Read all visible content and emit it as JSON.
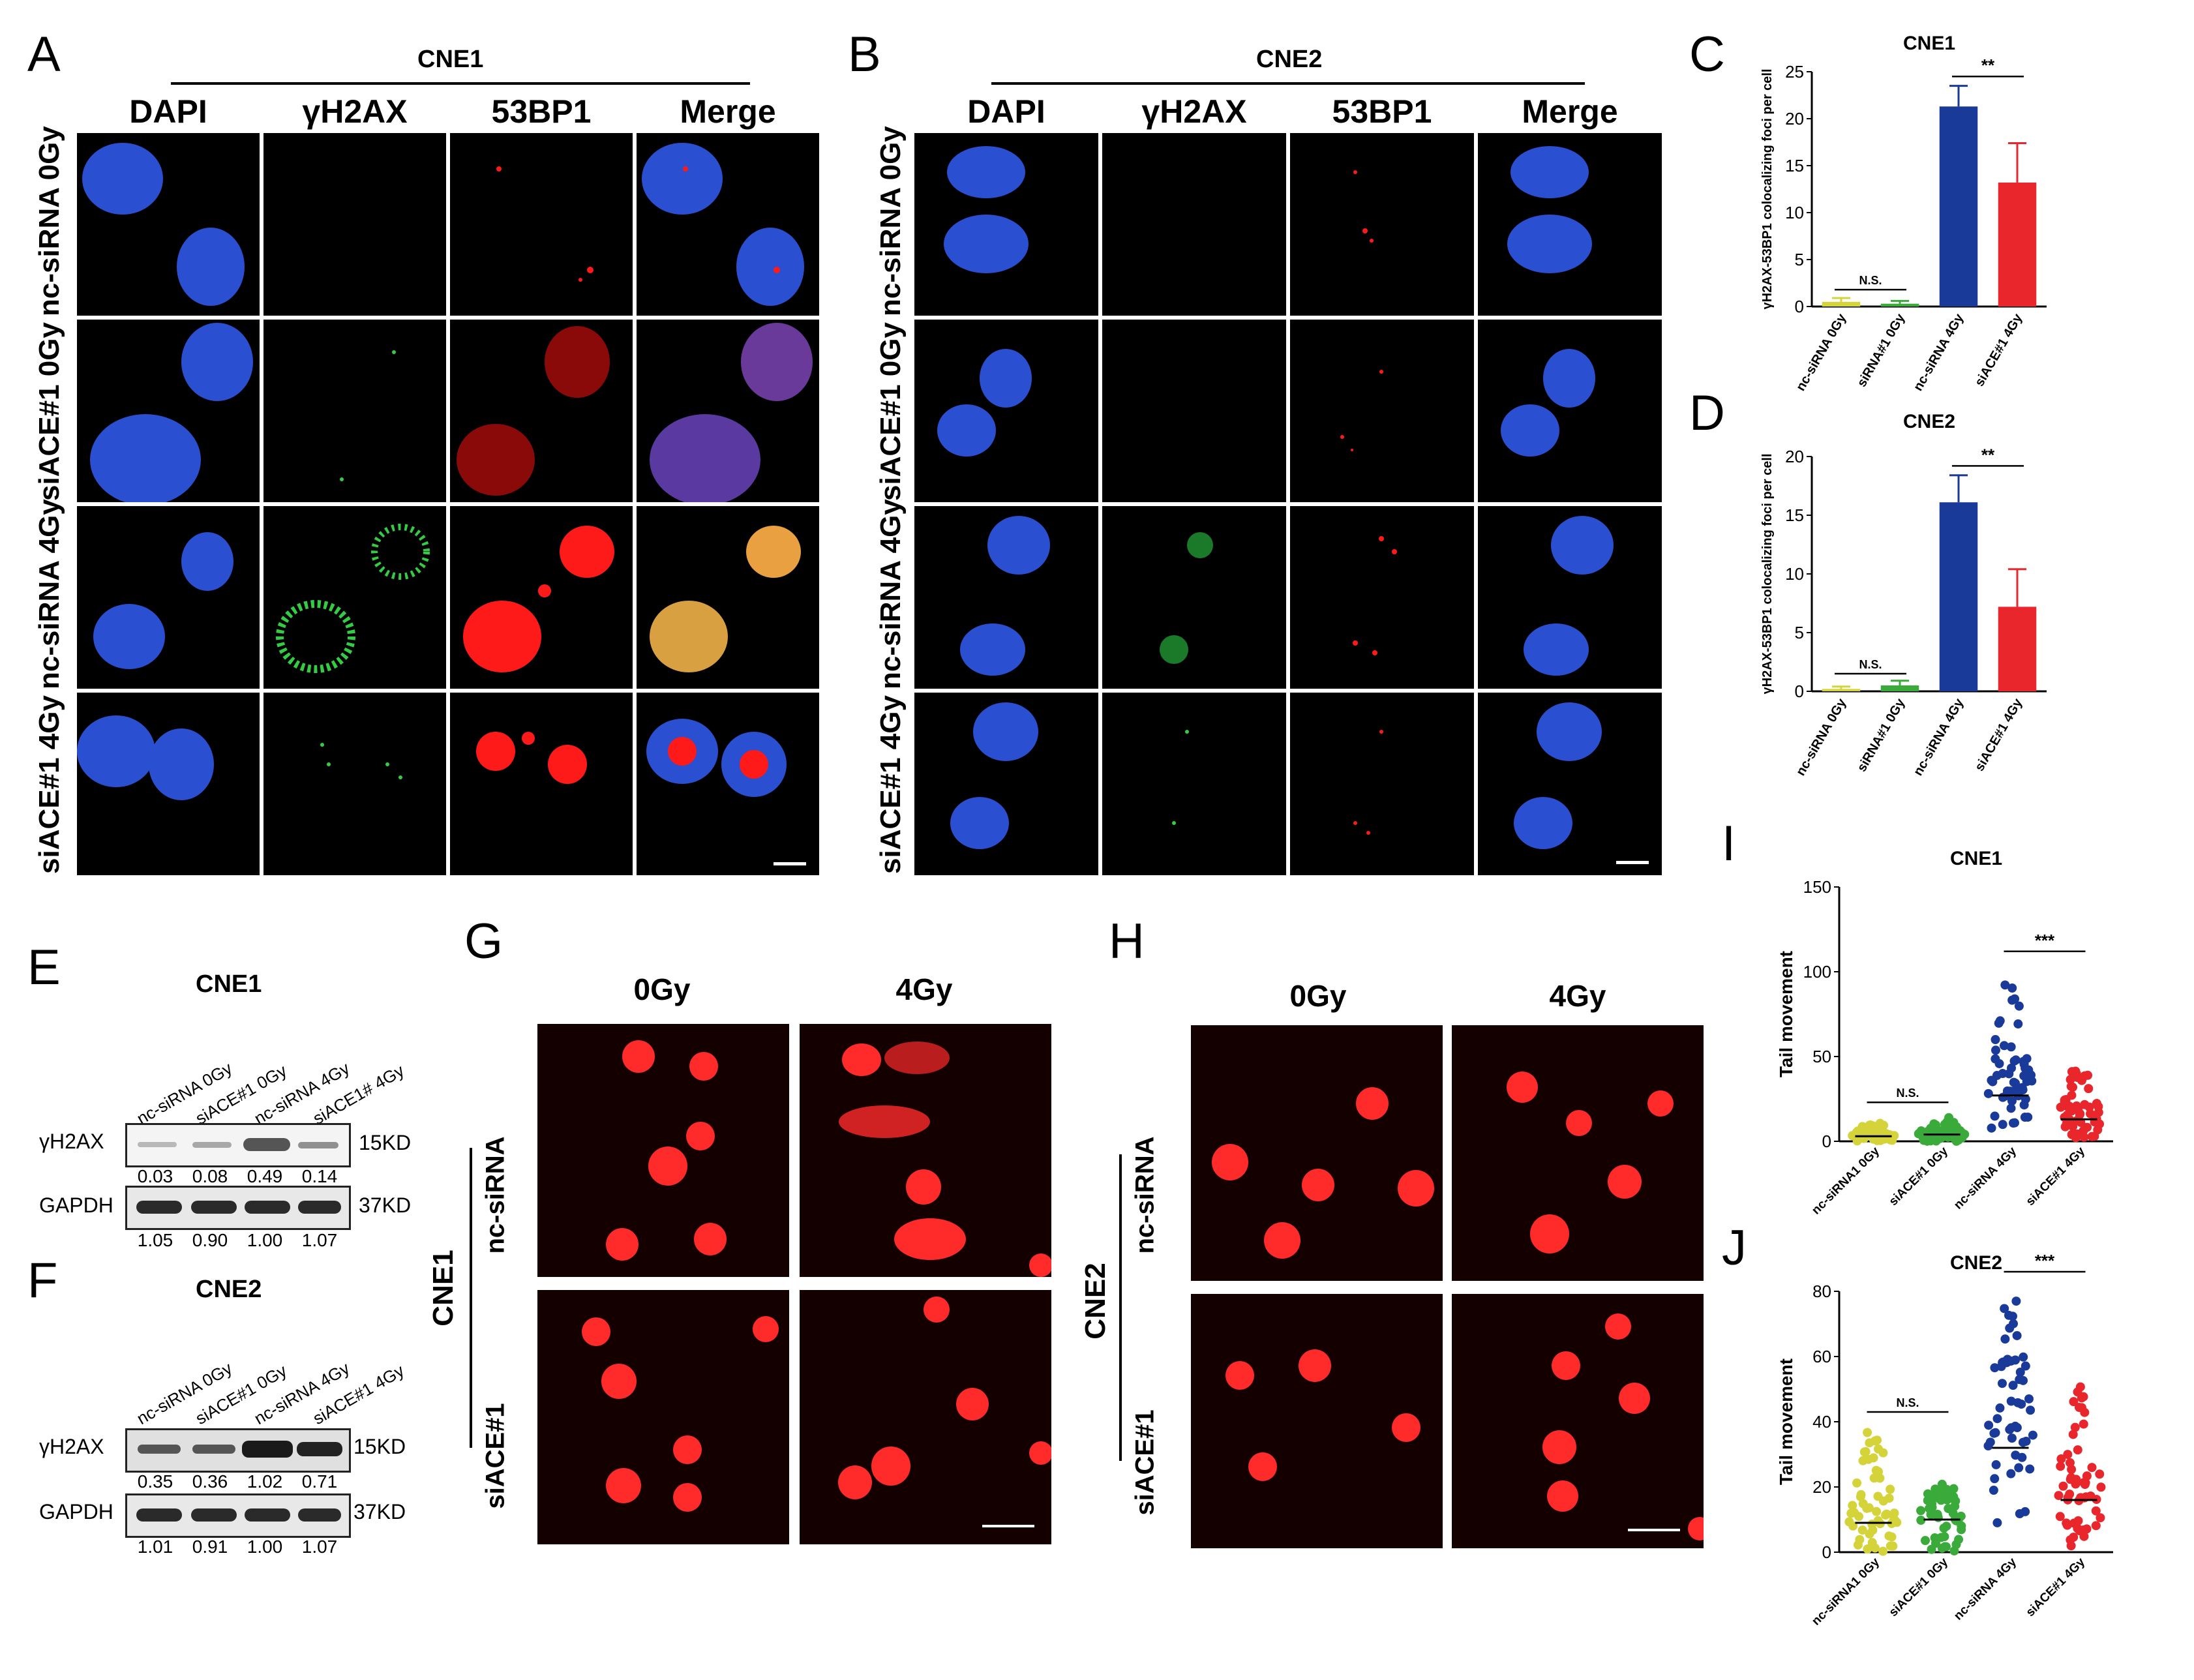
{
  "panels": {
    "A": {
      "label": "A",
      "group": "CNE1",
      "columns": [
        "DAPI",
        "γH2AX",
        "53BP1",
        "Merge"
      ],
      "rows": [
        "nc-siRNA 0Gy",
        "siACE#1 0Gy",
        "nc-siRNA 4Gy",
        "siACE#1 4Gy"
      ]
    },
    "B": {
      "label": "B",
      "group": "CNE2",
      "columns": [
        "DAPI",
        "γH2AX",
        "53BP1",
        "Merge"
      ],
      "rows": [
        "nc-siRNA 0Gy",
        "siACE#1 0Gy",
        "nc-siRNA 4Gy",
        "siACE#1 4Gy"
      ]
    },
    "C": {
      "label": "C"
    },
    "D": {
      "label": "D"
    },
    "E": {
      "label": "E",
      "title": "CNE1",
      "lanes": [
        "nc-siRNA 0Gy",
        "siACE#1 0Gy",
        "nc-siRNA 4Gy",
        "siACE1# 4Gy"
      ],
      "blots": [
        {
          "name": "γH2AX",
          "size": "15KD",
          "values": [
            "0.03",
            "0.08",
            "0.49",
            "0.14"
          ]
        },
        {
          "name": "GAPDH",
          "size": "37KD",
          "values": [
            "1.05",
            "0.90",
            "1.00",
            "1.07"
          ]
        }
      ]
    },
    "F": {
      "label": "F",
      "title": "CNE2",
      "lanes": [
        "nc-siRNA 0Gy",
        "siACE#1 0Gy",
        "nc-siRNA 4Gy",
        "siACE#1 4Gy"
      ],
      "blots": [
        {
          "name": "γH2AX",
          "size": "15KD",
          "values": [
            "0.35",
            "0.36",
            "1.02",
            "0.71"
          ]
        },
        {
          "name": "GAPDH",
          "size": "37KD",
          "values": [
            "1.01",
            "0.91",
            "1.00",
            "1.07"
          ]
        }
      ]
    },
    "G": {
      "label": "G",
      "group": "CNE1",
      "columns": [
        "0Gy",
        "4Gy"
      ],
      "rows": [
        "nc-siRNA",
        "siACE#1"
      ]
    },
    "H": {
      "label": "H",
      "group": "CNE2",
      "columns": [
        "0Gy",
        "4Gy"
      ],
      "rows": [
        "nc-siRNA",
        "siACE#1"
      ]
    },
    "I": {
      "label": "I"
    },
    "J": {
      "label": "J"
    }
  },
  "colors": {
    "dapi": "#2a4fd0",
    "h2ax": "#33cc44",
    "bp53": "#ff1a1a",
    "bar_yellow": "#d4d43a",
    "bar_green": "#3aaa3a",
    "bar_blue": "#1a3a9a",
    "bar_red": "#e8262b"
  },
  "chart_data": [
    {
      "panel": "C",
      "type": "bar",
      "title": "CNE1",
      "ylabel": "γH2AX-53BP1 colocalizing foci per cell",
      "categories": [
        "nc-siRNA 0Gy",
        "siRNA#1 0Gy",
        "nc-siRNA 4Gy",
        "siACE#1 4Gy"
      ],
      "values": [
        0.5,
        0.3,
        21.3,
        13.2
      ],
      "errors": [
        0.4,
        0.3,
        2.2,
        4.2
      ],
      "ylim": [
        0,
        25
      ],
      "yticks": [
        0,
        5,
        10,
        15,
        20,
        25
      ],
      "bar_colors": [
        "#d4d43a",
        "#3aaa3a",
        "#1a3a9a",
        "#e8262b"
      ],
      "annotations": [
        {
          "text": "N.S.",
          "from": 0,
          "to": 1,
          "y": 1.8
        },
        {
          "text": "**",
          "from": 2,
          "to": 3,
          "y": 24.5
        }
      ]
    },
    {
      "panel": "D",
      "type": "bar",
      "title": "CNE2",
      "ylabel": "γH2AX-53BP1 colocalizing foci per cell",
      "categories": [
        "nc-siRNA 0Gy",
        "siRNA#1 0Gy",
        "nc-siRNA 4Gy",
        "siACE#1 4Gy"
      ],
      "values": [
        0.2,
        0.5,
        16.1,
        7.2
      ],
      "errors": [
        0.2,
        0.4,
        2.3,
        3.2
      ],
      "ylim": [
        0,
        20
      ],
      "yticks": [
        0,
        5,
        10,
        15,
        20
      ],
      "bar_colors": [
        "#d4d43a",
        "#3aaa3a",
        "#1a3a9a",
        "#e8262b"
      ],
      "annotations": [
        {
          "text": "N.S.",
          "from": 0,
          "to": 1,
          "y": 1.5
        },
        {
          "text": "**",
          "from": 2,
          "to": 3,
          "y": 19.2
        }
      ]
    },
    {
      "panel": "I",
      "type": "scatter",
      "title": "CNE1",
      "ylabel": "Tail movement",
      "categories": [
        "nc-siRNA1 0Gy",
        "siACE#1 0Gy",
        "nc-siRNA 4Gy",
        "siACE#1 4Gy"
      ],
      "ylim": [
        0,
        150
      ],
      "yticks": [
        0,
        50,
        100,
        150
      ],
      "medians": [
        3,
        4,
        27,
        13
      ],
      "spreads": [
        [
          0,
          12
        ],
        [
          0,
          14
        ],
        [
          5,
          97
        ],
        [
          2,
          44
        ]
      ],
      "point_colors": [
        "#d4d43a",
        "#3aaa3a",
        "#1a3a9a",
        "#e8262b"
      ],
      "annotations": [
        {
          "text": "N.S.",
          "from": 0,
          "to": 1,
          "y": 23
        },
        {
          "text": "***",
          "from": 2,
          "to": 3,
          "y": 112
        }
      ]
    },
    {
      "panel": "J",
      "type": "scatter",
      "title": "CNE2",
      "ylabel": "Tail movement",
      "categories": [
        "nc-siRNA1 0Gy",
        "siACE#1 0Gy",
        "nc-siRNA 4Gy",
        "siACE#1 4Gy"
      ],
      "ylim": [
        0,
        80
      ],
      "yticks": [
        0,
        20,
        40,
        60,
        80
      ],
      "medians": [
        9,
        10,
        32,
        16
      ],
      "spreads": [
        [
          0,
          38
        ],
        [
          0,
          21
        ],
        [
          4,
          77
        ],
        [
          1,
          51
        ]
      ],
      "point_colors": [
        "#d4d43a",
        "#3aaa3a",
        "#1a3a9a",
        "#e8262b"
      ],
      "annotations": [
        {
          "text": "N.S.",
          "from": 0,
          "to": 1,
          "y": 43
        },
        {
          "text": "***",
          "from": 2,
          "to": 3,
          "y": 86
        }
      ]
    }
  ]
}
